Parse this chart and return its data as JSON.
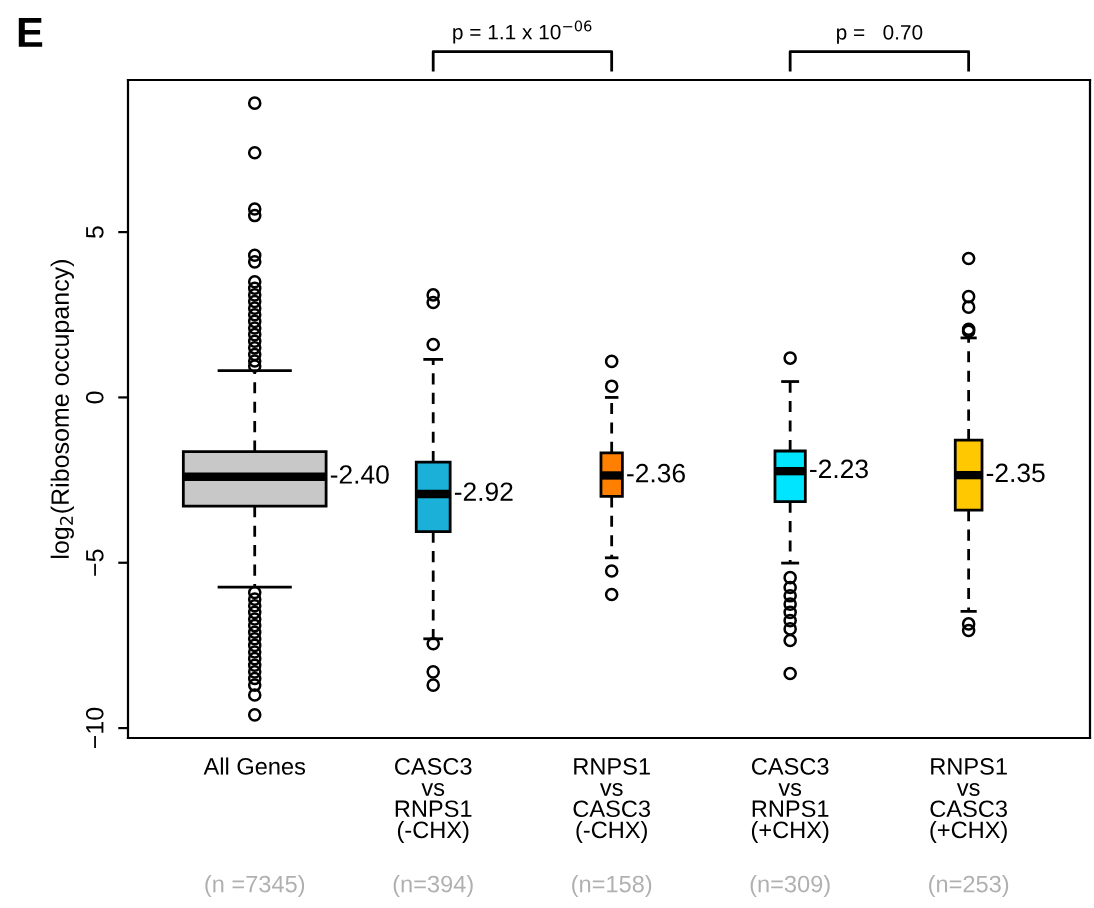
{
  "chart_data": {
    "type": "box",
    "ylabel": "log$_{2}$(Ribosome occupancy)",
    "categories": [
      "All Genes",
      "CASC3\nvs\nRNPS1\n(-CHX)",
      "RNPS1\nvs\nCASC3\n(-CHX)",
      "CASC3\nvs\nRNPS1\n(+CHX)",
      "RNPS1\nvs\nCASC3\n(+CHX)"
    ],
    "colors": [
      "#c8c8c8",
      "#1ab0d8",
      "#ff7f00",
      "#00e5ff",
      "#ffc800"
    ],
    "boxes": [
      {
        "low": -5.74,
        "q1": -3.29,
        "median": -2.4,
        "q3": -1.64,
        "high": 0.81,
        "outliers": [
          8.9,
          7.4,
          5.7,
          5.5,
          4.3,
          4.1,
          3.5,
          3.3,
          3.1,
          2.9,
          2.7,
          2.5,
          2.3,
          2.1,
          1.9,
          1.7,
          1.5,
          1.3,
          1.1,
          0.95,
          -5.9,
          -6.1,
          -6.3,
          -6.5,
          -6.7,
          -6.9,
          -7.1,
          -7.3,
          -7.5,
          -7.7,
          -7.9,
          -8.1,
          -8.3,
          -8.5,
          -8.7,
          -9.0,
          -9.6
        ]
      },
      {
        "low": -7.3,
        "q1": -4.06,
        "median": -2.92,
        "q3": -1.96,
        "high": 1.15,
        "outliers": [
          3.1,
          2.87,
          1.6,
          -7.45,
          -8.3,
          -8.7
        ]
      },
      {
        "low": -4.85,
        "q1": -2.99,
        "median": -2.36,
        "q3": -1.68,
        "high": 0.0,
        "outliers": [
          1.09,
          0.34,
          -5.25,
          -5.96
        ]
      },
      {
        "low": -5.01,
        "q1": -3.15,
        "median": -2.23,
        "q3": -1.62,
        "high": 0.48,
        "outliers": [
          1.19,
          -5.45,
          -5.75,
          -6.0,
          -6.25,
          -6.5,
          -6.75,
          -7.0,
          -7.35,
          -8.35
        ]
      },
      {
        "low": -6.47,
        "q1": -3.41,
        "median": -2.35,
        "q3": -1.29,
        "high": 1.8,
        "outliers": [
          4.2,
          3.05,
          2.73,
          2.06,
          2.0,
          -6.85,
          -7.05
        ]
      }
    ],
    "value_labels": [
      "-2.40",
      "-2.92",
      "-2.36",
      "-2.23",
      "-2.35"
    ],
    "ylim": [
      -10.3,
      9.6
    ],
    "yticks": [
      {
        "value": -10,
        "label": "−10"
      },
      {
        "value": -5,
        "label": "−5"
      },
      0,
      5
    ],
    "grid": false,
    "annotations": [
      "E",
      "p = 1.1 x 10$^{−06}$",
      "p =   0.70",
      "(n =7345)",
      "(n=394)",
      "(n=158)",
      "(n=309)",
      "(n=253)"
    ]
  }
}
